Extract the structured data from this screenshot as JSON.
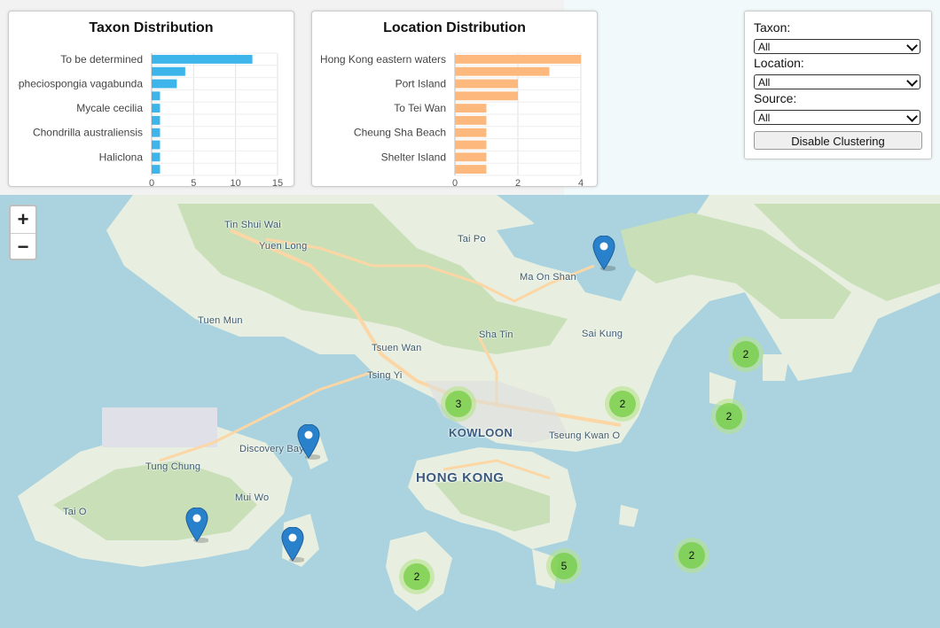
{
  "filters": {
    "taxon_label": "Taxon:",
    "taxon_value": "All",
    "location_label": "Location:",
    "location_value": "All",
    "source_label": "Source:",
    "source_value": "All",
    "clustering_button": "Disable Clustering"
  },
  "zoom": {
    "in": "+",
    "out": "−"
  },
  "places": {
    "tin_shui_wai": "Tin Shui Wai",
    "yuen_long": "Yuen Long",
    "tai_po": "Tai Po",
    "ma_on_shan": "Ma On Shan",
    "tuen_mun": "Tuen Mun",
    "sha_tin": "Sha Tin",
    "sai_kung": "Sai Kung",
    "tsuen_wan": "Tsuen Wan",
    "tsing_yi": "Tsing Yi",
    "kowloon": "KOWLOON",
    "tseung_kwan_o": "Tseung Kwan O",
    "discovery_bay": "Discovery Bay",
    "tung_chung": "Tung Chung",
    "hong_kong": "HONG KONG",
    "mui_wo": "Mui Wo",
    "tai_o": "Tai O"
  },
  "clusters": [
    {
      "count": "2"
    },
    {
      "count": "3"
    },
    {
      "count": "2"
    },
    {
      "count": "2"
    },
    {
      "count": "2"
    },
    {
      "count": "5"
    },
    {
      "count": "2"
    }
  ],
  "chart_data": [
    {
      "type": "bar",
      "orientation": "horizontal",
      "title": "Taxon Distribution",
      "color": "#3db5ea",
      "categories": [
        "To be determined",
        "",
        "Spheciospongia vagabunda",
        "",
        "Mycale cecilia",
        "",
        "Chondrilla australiensis",
        "",
        "Haliclona",
        ""
      ],
      "values": [
        12,
        4,
        3,
        1,
        1,
        1,
        1,
        1,
        1,
        1
      ],
      "xticks": [
        "0",
        "5",
        "10",
        "15"
      ],
      "xlim": [
        0,
        15
      ],
      "grid": true
    },
    {
      "type": "bar",
      "orientation": "horizontal",
      "title": "Location Distribution",
      "color": "#fdb97d",
      "categories": [
        "Hong Kong eastern waters",
        "",
        "Port Island",
        "",
        "To Tei Wan",
        "",
        "Cheung Sha Beach",
        "",
        "Shelter Island",
        ""
      ],
      "values": [
        4,
        3,
        2,
        2,
        1,
        1,
        1,
        1,
        1,
        1
      ],
      "xticks": [
        "0",
        "2",
        "4"
      ],
      "xlim": [
        0,
        4
      ],
      "grid": true
    }
  ]
}
